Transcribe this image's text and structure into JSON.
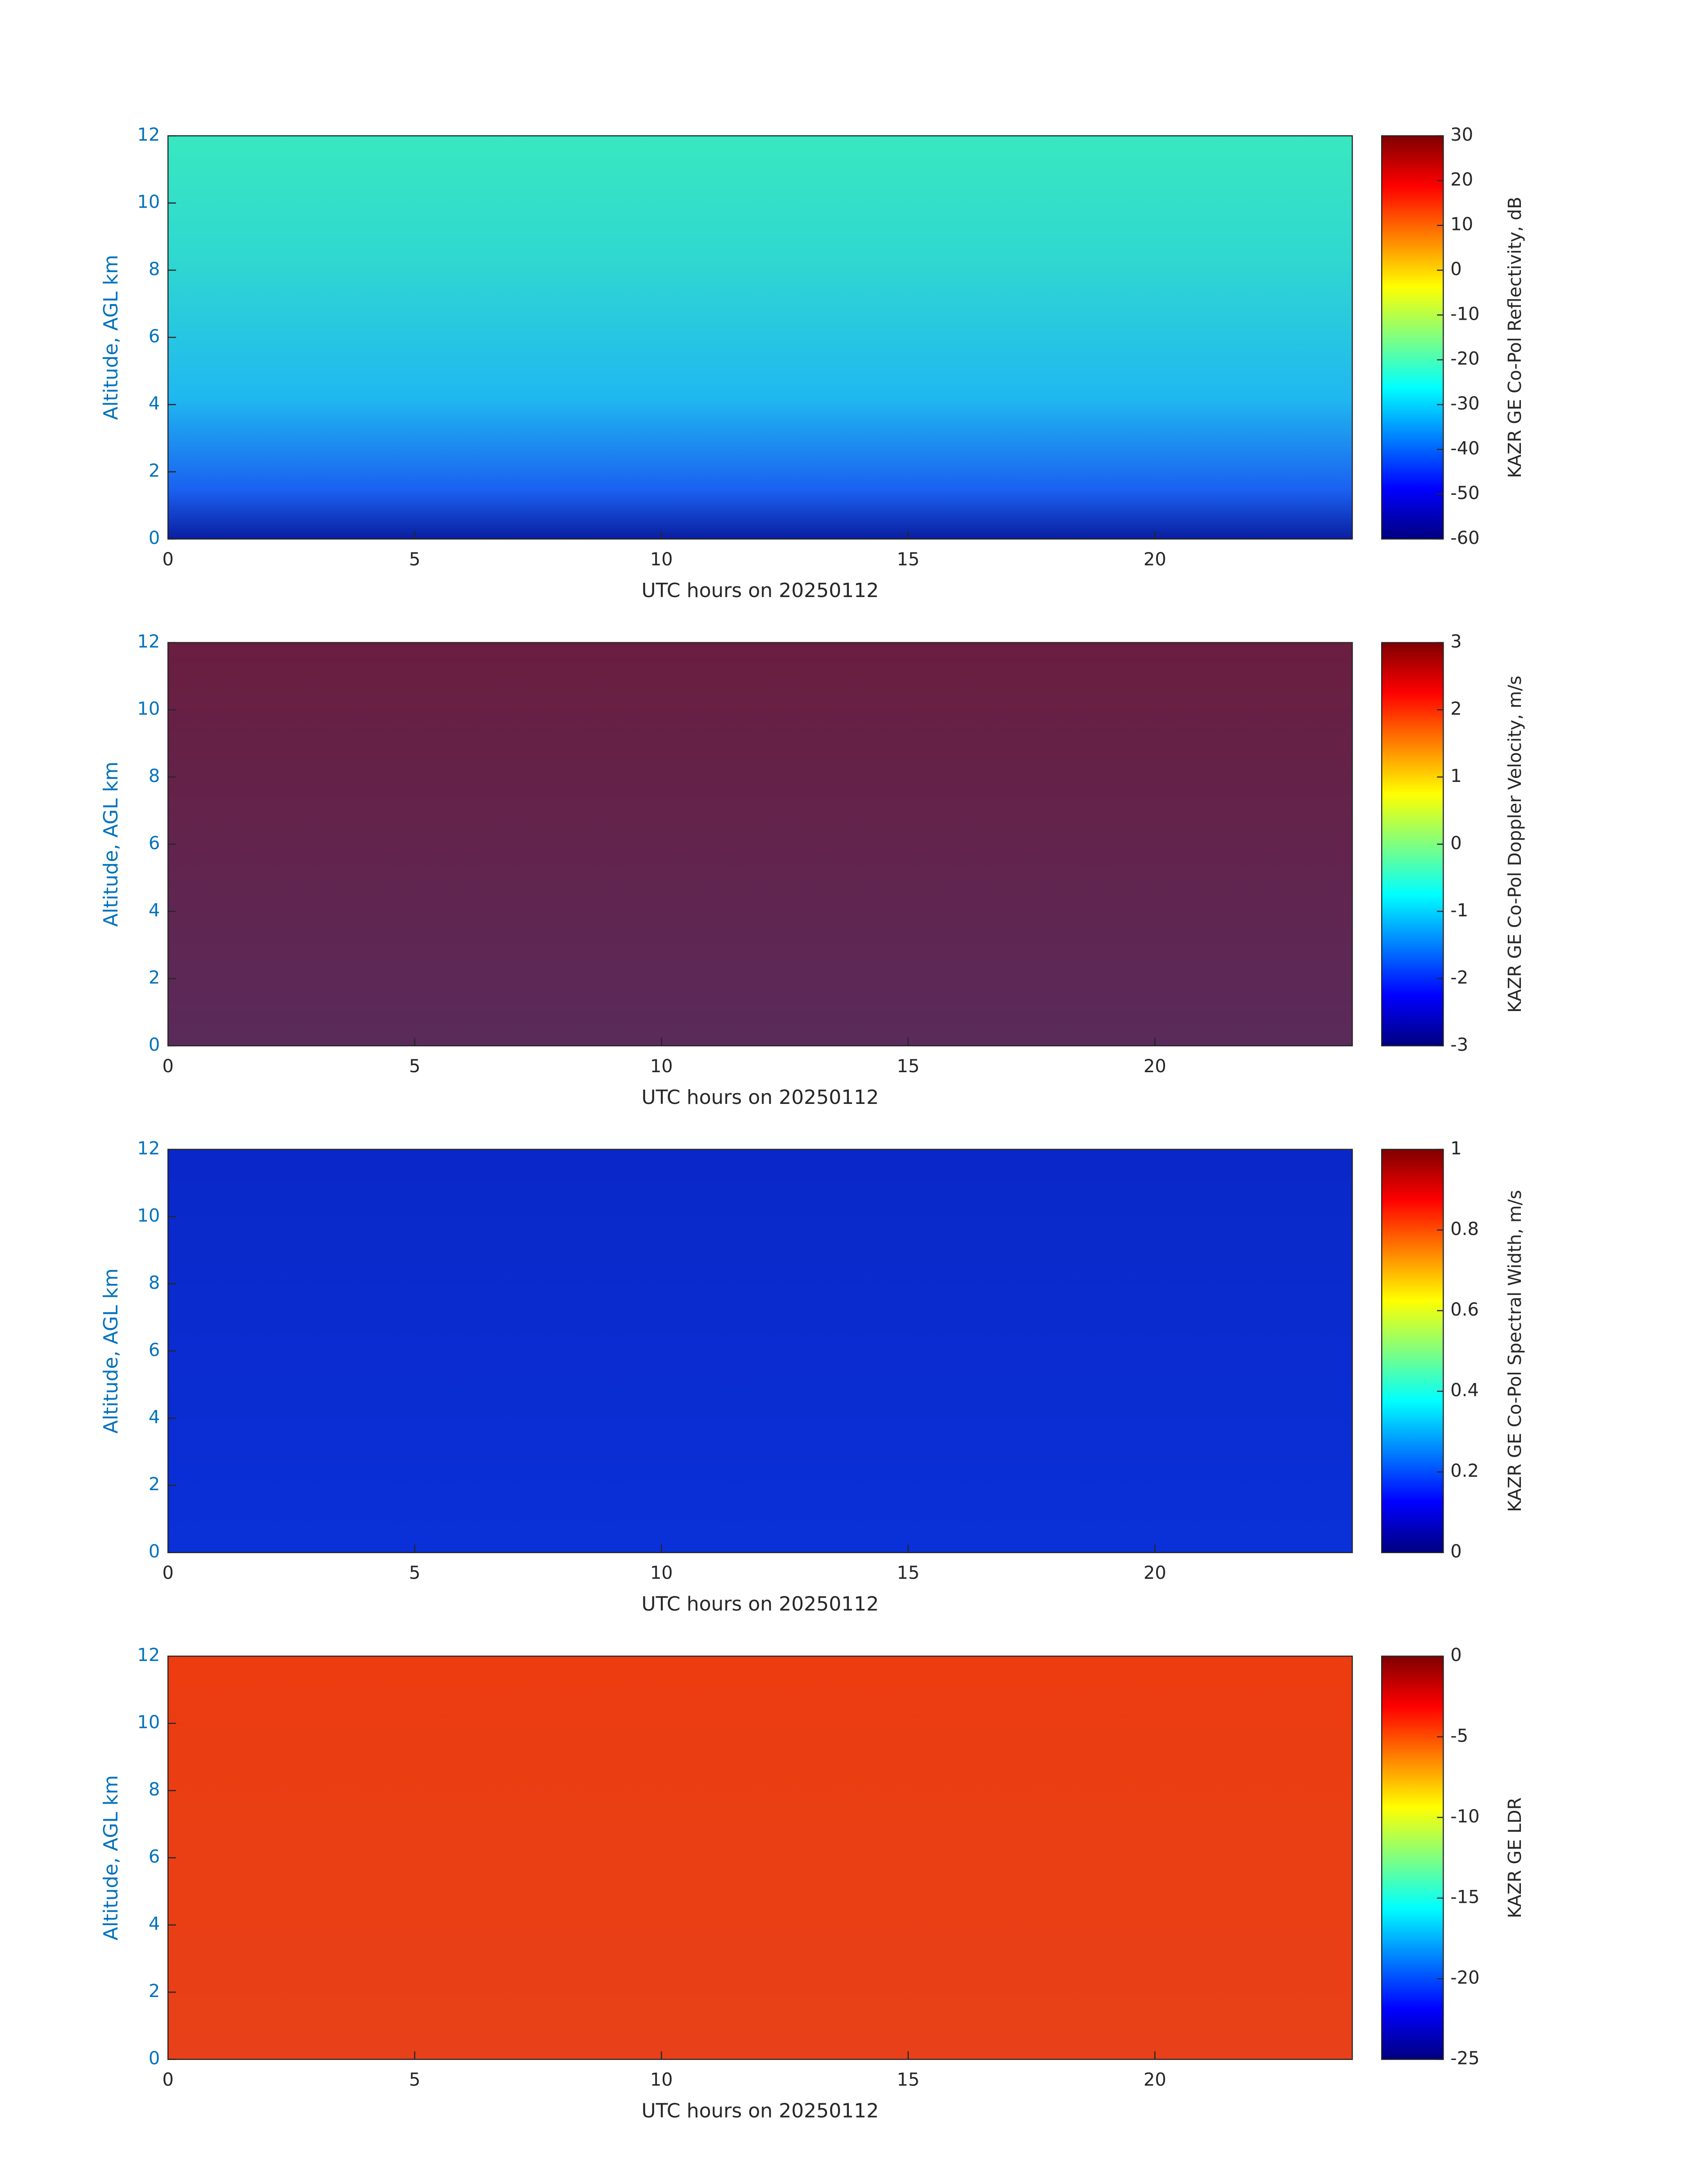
{
  "chart_data": [
    {
      "type": "heatmap",
      "xlabel": "UTC hours on 20250112",
      "ylabel": "Altitude, AGL km",
      "xlim": [
        0,
        24
      ],
      "xticks": [
        0,
        5,
        10,
        15,
        20
      ],
      "ylim": [
        0,
        12
      ],
      "yticks": [
        0,
        2,
        4,
        6,
        8,
        10,
        12
      ],
      "colormap": "jet",
      "colorbar": {
        "label": "KAZR GE Co-Pol Reflectivity, dB",
        "clim": [
          -60,
          30
        ],
        "ticks": [
          -60,
          -50,
          -40,
          -30,
          -20,
          -10,
          0,
          10,
          20,
          30
        ]
      }
    },
    {
      "type": "heatmap",
      "xlabel": "UTC hours on 20250112",
      "ylabel": "Altitude, AGL km",
      "xlim": [
        0,
        24
      ],
      "xticks": [
        0,
        5,
        10,
        15,
        20
      ],
      "ylim": [
        0,
        12
      ],
      "yticks": [
        0,
        2,
        4,
        6,
        8,
        10,
        12
      ],
      "colormap": "jet",
      "colorbar": {
        "label": "KAZR GE Co-Pol Doppler Velocity, m/s",
        "clim": [
          -3,
          3
        ],
        "ticks": [
          -3,
          -2,
          -1,
          0,
          1,
          2,
          3
        ]
      }
    },
    {
      "type": "heatmap",
      "xlabel": "UTC hours on 20250112",
      "ylabel": "Altitude, AGL km",
      "xlim": [
        0,
        24
      ],
      "xticks": [
        0,
        5,
        10,
        15,
        20
      ],
      "ylim": [
        0,
        12
      ],
      "yticks": [
        0,
        2,
        4,
        6,
        8,
        10,
        12
      ],
      "colormap": "jet",
      "colorbar": {
        "label": "KAZR GE Co-Pol Spectral Width, m/s",
        "clim": [
          0,
          1
        ],
        "ticks": [
          0,
          0.2,
          0.4,
          0.6,
          0.8,
          1
        ]
      }
    },
    {
      "type": "heatmap",
      "xlabel": "UTC hours on 20250112",
      "ylabel": "Altitude, AGL km",
      "xlim": [
        0,
        24
      ],
      "xticks": [
        0,
        5,
        10,
        15,
        20
      ],
      "ylim": [
        0,
        12
      ],
      "yticks": [
        0,
        2,
        4,
        6,
        8,
        10,
        12
      ],
      "colormap": "jet",
      "colorbar": {
        "label": "KAZR GE LDR",
        "clim": [
          -25,
          0
        ],
        "ticks": [
          -25,
          -20,
          -15,
          -10,
          -5,
          0
        ]
      }
    }
  ]
}
